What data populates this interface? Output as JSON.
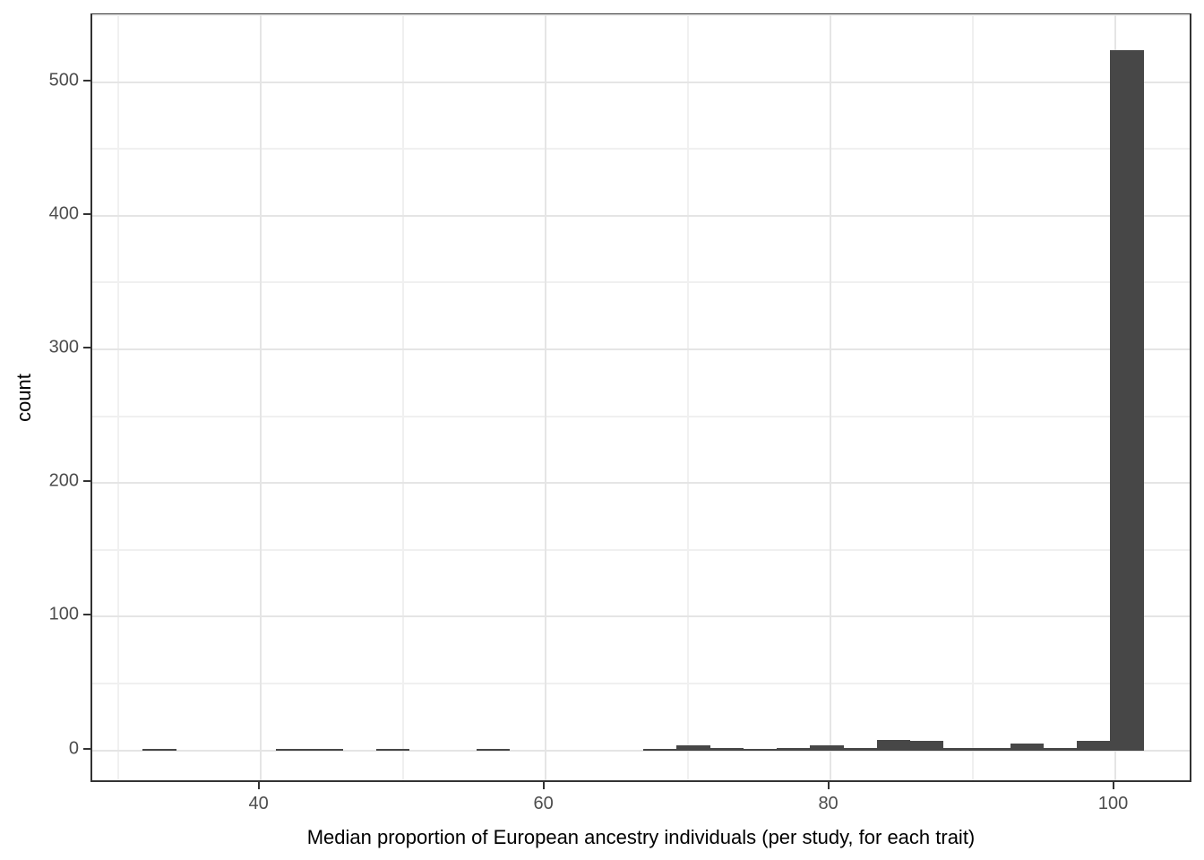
{
  "chart_data": {
    "type": "bar",
    "subtype": "histogram",
    "title": "",
    "xlabel": "Median proportion of European ancestry individuals (per study, for each trait)",
    "ylabel": "count",
    "xlim": [
      28.2,
      105.5
    ],
    "ylim": [
      -25,
      550
    ],
    "x_major_ticks": [
      40,
      60,
      80,
      100
    ],
    "x_minor_gridlines": [
      30,
      50,
      70,
      90
    ],
    "y_major_ticks": [
      0,
      100,
      200,
      300,
      400,
      500
    ],
    "y_minor_gridlines": [
      50,
      150,
      250,
      350,
      450,
      550
    ],
    "grid": "on",
    "legend": "none",
    "bin_width": 2.34,
    "bins": [
      {
        "x0": 31.75,
        "x1": 34.09,
        "count": 1
      },
      {
        "x0": 34.09,
        "x1": 36.44,
        "count": 0
      },
      {
        "x0": 36.44,
        "x1": 38.78,
        "count": 0
      },
      {
        "x0": 38.78,
        "x1": 41.12,
        "count": 0
      },
      {
        "x0": 41.12,
        "x1": 43.46,
        "count": 1
      },
      {
        "x0": 43.46,
        "x1": 45.81,
        "count": 1
      },
      {
        "x0": 45.81,
        "x1": 48.15,
        "count": 0
      },
      {
        "x0": 48.15,
        "x1": 50.49,
        "count": 1
      },
      {
        "x0": 50.49,
        "x1": 52.83,
        "count": 0
      },
      {
        "x0": 52.83,
        "x1": 55.18,
        "count": 0
      },
      {
        "x0": 55.18,
        "x1": 57.52,
        "count": 1
      },
      {
        "x0": 57.52,
        "x1": 59.86,
        "count": 0
      },
      {
        "x0": 59.86,
        "x1": 62.2,
        "count": 0
      },
      {
        "x0": 62.2,
        "x1": 64.55,
        "count": 0
      },
      {
        "x0": 64.55,
        "x1": 66.89,
        "count": 0
      },
      {
        "x0": 66.89,
        "x1": 69.23,
        "count": 1
      },
      {
        "x0": 69.23,
        "x1": 71.57,
        "count": 4
      },
      {
        "x0": 71.57,
        "x1": 73.92,
        "count": 2
      },
      {
        "x0": 73.92,
        "x1": 76.26,
        "count": 1
      },
      {
        "x0": 76.26,
        "x1": 78.6,
        "count": 2
      },
      {
        "x0": 78.6,
        "x1": 80.94,
        "count": 4
      },
      {
        "x0": 80.94,
        "x1": 83.29,
        "count": 2
      },
      {
        "x0": 83.29,
        "x1": 85.63,
        "count": 8
      },
      {
        "x0": 85.63,
        "x1": 87.97,
        "count": 7
      },
      {
        "x0": 87.97,
        "x1": 90.31,
        "count": 2
      },
      {
        "x0": 90.31,
        "x1": 92.66,
        "count": 2
      },
      {
        "x0": 92.66,
        "x1": 95.0,
        "count": 5
      },
      {
        "x0": 95.0,
        "x1": 97.34,
        "count": 2
      },
      {
        "x0": 97.34,
        "x1": 99.68,
        "count": 7
      },
      {
        "x0": 99.68,
        "x1": 102.02,
        "count": 524
      }
    ],
    "colors": {
      "bar_fill": "#474747",
      "panel_border": "#333333",
      "grid_major": "#e5e5e5",
      "grid_minor": "#f0f0f0",
      "tick_mark": "#333333",
      "tick_label": "#4d4d4d",
      "axis_title": "#000000",
      "background": "#ffffff"
    }
  }
}
